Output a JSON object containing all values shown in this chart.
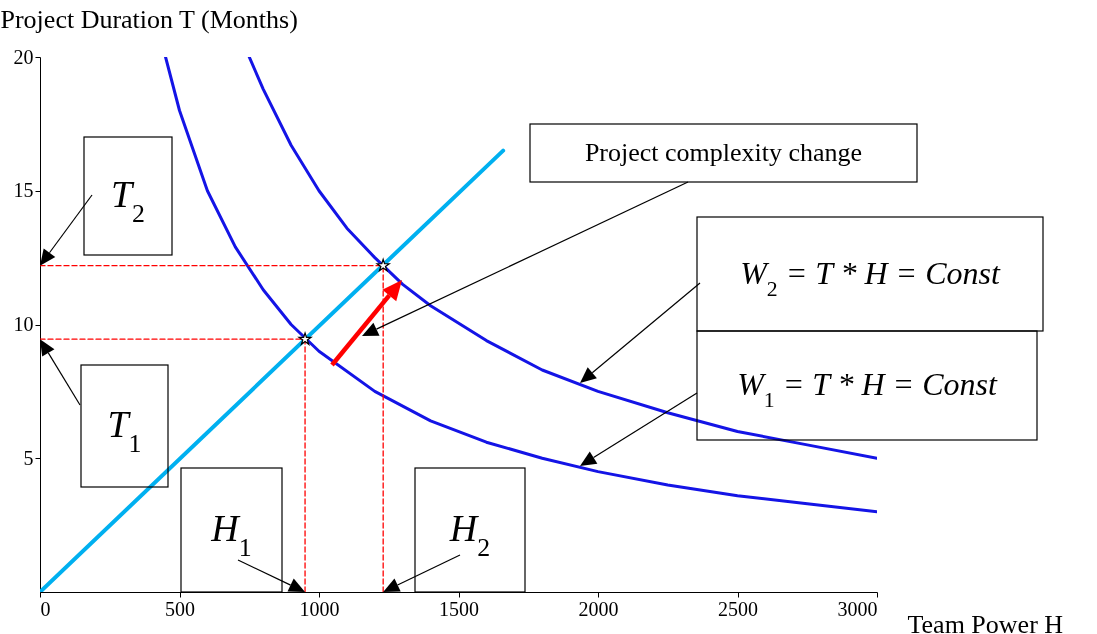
{
  "chart_data": {
    "type": "line",
    "xlabel": "Team Power H",
    "ylabel": "Project Duration T  (Months)",
    "xlim": [
      0,
      3000
    ],
    "ylim": [
      0,
      20
    ],
    "xticks": [
      0,
      500,
      1000,
      1500,
      2000,
      2500,
      3000
    ],
    "yticks": [
      5,
      10,
      15,
      20
    ],
    "grid": false,
    "annotations": [
      {
        "text": "T$_{2}$",
        "x": 0,
        "y": 12.2
      },
      {
        "text": "T$_{1}$",
        "x": 0,
        "y": 9.45
      },
      {
        "text": "H$_{1}$",
        "x": 950,
        "y": 0
      },
      {
        "text": "H$_{2}$",
        "x": 1230,
        "y": 0
      },
      "Project complexity change",
      "W$_{2}$ = T * H = Const",
      "W$_{1}$ = T * H = Const"
    ],
    "series": [
      {
        "color": "#00b0f0",
        "x": [
          0,
          1660
        ],
        "values": [
          0,
          16.5
        ]
      },
      {
        "color": "#1414e6",
        "x": [
          450,
          500,
          600,
          700,
          800,
          900,
          1000,
          1200,
          1400,
          1600,
          1800,
          2000,
          2250,
          2500,
          2750,
          3000
        ],
        "values": [
          20,
          18,
          15,
          12.9,
          11.3,
          10,
          9,
          7.5,
          6.4,
          5.6,
          5,
          4.5,
          4,
          3.6,
          3.3,
          3
        ]
      },
      {
        "color": "#1414e6",
        "x": [
          750,
          800,
          900,
          1000,
          1100,
          1200,
          1300,
          1400,
          1600,
          1800,
          2000,
          2250,
          2500,
          2750,
          3000
        ],
        "values": [
          20,
          18.8,
          16.7,
          15,
          13.6,
          12.5,
          11.5,
          10.7,
          9.4,
          8.3,
          7.5,
          6.7,
          6,
          5.5,
          5
        ]
      },
      {
        "color": "#ff0000",
        "line_style": "dashed",
        "x": [
          0,
          950
        ],
        "values": [
          9.45,
          9.45
        ]
      },
      {
        "color": "#ff0000",
        "line_style": "dashed",
        "x": [
          950,
          950
        ],
        "values": [
          0,
          9.45
        ]
      },
      {
        "color": "#ff0000",
        "line_style": "dashed",
        "x": [
          0,
          1230
        ],
        "values": [
          12.2,
          12.2
        ]
      },
      {
        "color": "#ff0000",
        "line_style": "dashed",
        "x": [
          1230,
          1230
        ],
        "values": [
          0,
          12.2
        ]
      },
      {
        "type": "scatter",
        "color": "#ffffff",
        "marker": "star",
        "x": [
          950,
          1230
        ],
        "values": [
          9.45,
          12.2
        ]
      }
    ]
  }
}
